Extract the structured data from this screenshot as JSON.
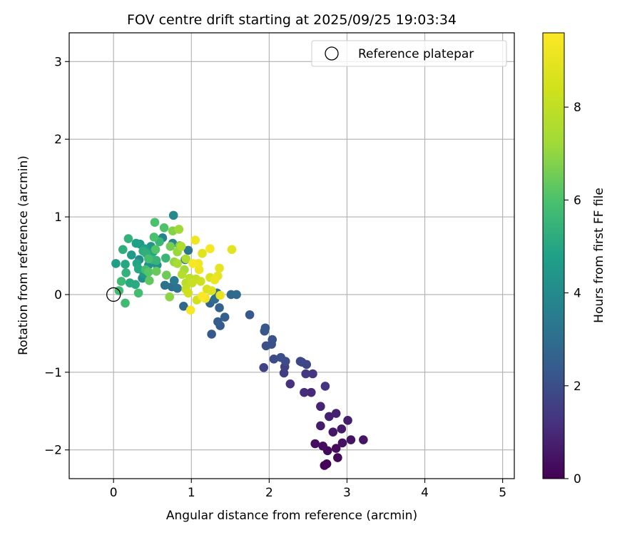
{
  "chart_data": {
    "type": "scatter",
    "title": "FOV centre drift starting at 2025/09/25 19:03:34",
    "xlabel": "Angular distance from reference (arcmin)",
    "ylabel": "Rotation from reference (arcmin)",
    "xlim": [
      -0.57,
      5.15
    ],
    "ylim": [
      -2.37,
      3.37
    ],
    "xticks": [
      0,
      1,
      2,
      3,
      4,
      5
    ],
    "xtick_labels": [
      "0",
      "1",
      "2",
      "3",
      "4",
      "5"
    ],
    "yticks": [
      -2,
      -1,
      0,
      1,
      2,
      3
    ],
    "ytick_labels": [
      "−2",
      "−1",
      "0",
      "1",
      "2",
      "3"
    ],
    "grid": true,
    "legend": {
      "location": "top-right",
      "entries": [
        "Reference platepar"
      ]
    },
    "reference_point": {
      "x": 0,
      "y": 0,
      "label": "Reference platepar"
    },
    "colorbar": {
      "label": "Hours from first FF file",
      "colormap": "viridis",
      "range": [
        0,
        9.6
      ],
      "ticks": [
        0,
        2,
        4,
        6,
        8
      ],
      "tick_labels": [
        "0",
        "2",
        "4",
        "6",
        "8"
      ]
    },
    "points": [
      {
        "x": 2.71,
        "y": -2.2,
        "h": 0.05
      },
      {
        "x": 2.74,
        "y": -2.18,
        "h": 0.1
      },
      {
        "x": 2.88,
        "y": -2.1,
        "h": 0.15
      },
      {
        "x": 2.75,
        "y": -2.01,
        "h": 0.2
      },
      {
        "x": 2.86,
        "y": -1.98,
        "h": 0.25
      },
      {
        "x": 2.69,
        "y": -1.95,
        "h": 0.3
      },
      {
        "x": 2.59,
        "y": -1.92,
        "h": 0.35
      },
      {
        "x": 2.94,
        "y": -1.91,
        "h": 0.4
      },
      {
        "x": 3.05,
        "y": -1.87,
        "h": 0.45
      },
      {
        "x": 3.21,
        "y": -1.87,
        "h": 0.5
      },
      {
        "x": 2.82,
        "y": -1.77,
        "h": 0.55
      },
      {
        "x": 2.93,
        "y": -1.73,
        "h": 0.6
      },
      {
        "x": 2.66,
        "y": -1.69,
        "h": 0.65
      },
      {
        "x": 3.01,
        "y": -1.62,
        "h": 0.7
      },
      {
        "x": 2.77,
        "y": -1.57,
        "h": 0.75
      },
      {
        "x": 2.86,
        "y": -1.53,
        "h": 0.8
      },
      {
        "x": 2.66,
        "y": -1.44,
        "h": 0.9
      },
      {
        "x": 2.54,
        "y": -1.26,
        "h": 1.0
      },
      {
        "x": 2.45,
        "y": -1.26,
        "h": 1.1
      },
      {
        "x": 2.27,
        "y": -1.15,
        "h": 1.2
      },
      {
        "x": 2.72,
        "y": -1.18,
        "h": 1.3
      },
      {
        "x": 2.56,
        "y": -1.02,
        "h": 1.35
      },
      {
        "x": 2.47,
        "y": -1.02,
        "h": 1.4
      },
      {
        "x": 2.19,
        "y": -1.01,
        "h": 1.5
      },
      {
        "x": 2.2,
        "y": -0.93,
        "h": 1.6
      },
      {
        "x": 1.93,
        "y": -0.94,
        "h": 1.7
      },
      {
        "x": 2.48,
        "y": -0.9,
        "h": 1.75
      },
      {
        "x": 2.42,
        "y": -0.87,
        "h": 1.8
      },
      {
        "x": 2.4,
        "y": -0.86,
        "h": 1.85
      },
      {
        "x": 2.21,
        "y": -0.86,
        "h": 1.9
      },
      {
        "x": 2.06,
        "y": -0.83,
        "h": 1.95
      },
      {
        "x": 2.15,
        "y": -0.81,
        "h": 2.0
      },
      {
        "x": 1.96,
        "y": -0.66,
        "h": 2.05
      },
      {
        "x": 2.03,
        "y": -0.64,
        "h": 2.1
      },
      {
        "x": 2.04,
        "y": -0.58,
        "h": 2.15
      },
      {
        "x": 1.94,
        "y": -0.47,
        "h": 2.2
      },
      {
        "x": 1.95,
        "y": -0.43,
        "h": 2.25
      },
      {
        "x": 1.75,
        "y": -0.26,
        "h": 2.3
      },
      {
        "x": 1.26,
        "y": -0.51,
        "h": 2.35
      },
      {
        "x": 1.37,
        "y": -0.4,
        "h": 2.4
      },
      {
        "x": 1.34,
        "y": -0.35,
        "h": 2.45
      },
      {
        "x": 1.43,
        "y": -0.29,
        "h": 2.5
      },
      {
        "x": 1.36,
        "y": -0.17,
        "h": 2.6
      },
      {
        "x": 1.24,
        "y": -0.11,
        "h": 2.7
      },
      {
        "x": 0.9,
        "y": -0.15,
        "h": 2.8
      },
      {
        "x": 1.51,
        "y": 0.0,
        "h": 2.85
      },
      {
        "x": 1.58,
        "y": 0.0,
        "h": 2.9
      },
      {
        "x": 1.3,
        "y": -0.06,
        "h": 3.0
      },
      {
        "x": 1.33,
        "y": 0.02,
        "h": 3.05
      },
      {
        "x": 0.75,
        "y": 0.1,
        "h": 3.1
      },
      {
        "x": 0.82,
        "y": 0.08,
        "h": 3.15
      },
      {
        "x": 0.66,
        "y": 0.12,
        "h": 3.2
      },
      {
        "x": 0.96,
        "y": 0.57,
        "h": 3.3
      },
      {
        "x": 0.92,
        "y": 0.45,
        "h": 3.35
      },
      {
        "x": 0.78,
        "y": 0.18,
        "h": 3.4
      },
      {
        "x": 0.44,
        "y": 0.51,
        "h": 3.6
      },
      {
        "x": 0.63,
        "y": 0.73,
        "h": 3.7
      },
      {
        "x": 0.76,
        "y": 0.66,
        "h": 3.8
      },
      {
        "x": 0.77,
        "y": 1.02,
        "h": 4.0
      },
      {
        "x": 0.33,
        "y": 0.45,
        "h": 4.05
      },
      {
        "x": 0.37,
        "y": 0.21,
        "h": 4.1
      },
      {
        "x": 0.45,
        "y": 0.38,
        "h": 4.2
      },
      {
        "x": 0.56,
        "y": 0.38,
        "h": 4.3
      },
      {
        "x": 0.48,
        "y": 0.62,
        "h": 4.4
      },
      {
        "x": 0.34,
        "y": 0.65,
        "h": 4.5
      },
      {
        "x": 0.39,
        "y": 0.27,
        "h": 4.55
      },
      {
        "x": 0.23,
        "y": 0.51,
        "h": 4.6
      },
      {
        "x": 0.03,
        "y": 0.4,
        "h": 4.7
      },
      {
        "x": 0.29,
        "y": 0.66,
        "h": 4.75
      },
      {
        "x": 0.4,
        "y": 0.59,
        "h": 4.8
      },
      {
        "x": 0.51,
        "y": 0.55,
        "h": 4.9
      },
      {
        "x": 0.3,
        "y": 0.4,
        "h": 4.95
      },
      {
        "x": 0.15,
        "y": 0.39,
        "h": 5.0
      },
      {
        "x": 0.32,
        "y": 0.33,
        "h": 5.05
      },
      {
        "x": 0.21,
        "y": 0.15,
        "h": 5.1
      },
      {
        "x": 0.28,
        "y": 0.13,
        "h": 5.15
      },
      {
        "x": 0.38,
        "y": 0.56,
        "h": 5.2
      },
      {
        "x": 0.12,
        "y": 0.58,
        "h": 5.25
      },
      {
        "x": 0.42,
        "y": 0.53,
        "h": 5.3
      },
      {
        "x": 0.16,
        "y": 0.28,
        "h": 5.35
      },
      {
        "x": 0.19,
        "y": 0.72,
        "h": 5.4
      },
      {
        "x": 0.5,
        "y": 0.45,
        "h": 5.45
      },
      {
        "x": 0.55,
        "y": 0.44,
        "h": 5.5
      },
      {
        "x": 0.67,
        "y": 0.47,
        "h": 5.55
      },
      {
        "x": 0.59,
        "y": 0.68,
        "h": 5.6
      },
      {
        "x": 0.1,
        "y": 0.17,
        "h": 5.65
      },
      {
        "x": 0.07,
        "y": 0.05,
        "h": 5.7
      },
      {
        "x": 0.15,
        "y": -0.11,
        "h": 5.75
      },
      {
        "x": 0.32,
        "y": 0.02,
        "h": 5.8
      },
      {
        "x": 0.41,
        "y": 0.32,
        "h": 5.85
      },
      {
        "x": 0.45,
        "y": 0.46,
        "h": 5.9
      },
      {
        "x": 0.52,
        "y": 0.74,
        "h": 5.95
      },
      {
        "x": 0.53,
        "y": 0.93,
        "h": 6.0
      },
      {
        "x": 0.65,
        "y": 0.86,
        "h": 6.05
      },
      {
        "x": 0.54,
        "y": 0.58,
        "h": 6.1
      },
      {
        "x": 0.45,
        "y": 0.29,
        "h": 6.2
      },
      {
        "x": 0.46,
        "y": 0.18,
        "h": 6.3
      },
      {
        "x": 0.55,
        "y": 0.3,
        "h": 6.4
      },
      {
        "x": 0.68,
        "y": 0.25,
        "h": 6.5
      },
      {
        "x": 0.73,
        "y": 0.62,
        "h": 6.6
      },
      {
        "x": 0.85,
        "y": 0.63,
        "h": 6.7
      },
      {
        "x": 0.76,
        "y": 0.82,
        "h": 6.8
      },
      {
        "x": 0.72,
        "y": -0.03,
        "h": 6.9
      },
      {
        "x": 0.78,
        "y": 0.42,
        "h": 7.0
      },
      {
        "x": 0.82,
        "y": 0.55,
        "h": 7.1
      },
      {
        "x": 0.84,
        "y": 0.84,
        "h": 7.2
      },
      {
        "x": 0.91,
        "y": 0.32,
        "h": 7.3
      },
      {
        "x": 0.82,
        "y": 0.4,
        "h": 7.4
      },
      {
        "x": 0.93,
        "y": 0.46,
        "h": 7.5
      },
      {
        "x": 0.87,
        "y": 0.62,
        "h": 7.6
      },
      {
        "x": 0.88,
        "y": 0.26,
        "h": 7.7
      },
      {
        "x": 0.93,
        "y": 0.15,
        "h": 7.8
      },
      {
        "x": 0.98,
        "y": 0.21,
        "h": 7.9
      },
      {
        "x": 1.06,
        "y": 0.2,
        "h": 8.0
      },
      {
        "x": 0.93,
        "y": 0.07,
        "h": 8.1
      },
      {
        "x": 1.01,
        "y": 0.15,
        "h": 8.2
      },
      {
        "x": 1.12,
        "y": 0.17,
        "h": 8.3
      },
      {
        "x": 0.96,
        "y": 0.02,
        "h": 8.4
      },
      {
        "x": 1.07,
        "y": -0.07,
        "h": 8.5
      },
      {
        "x": 1.2,
        "y": 0.07,
        "h": 8.6
      },
      {
        "x": 1.24,
        "y": 0.22,
        "h": 8.7
      },
      {
        "x": 1.26,
        "y": 0.05,
        "h": 8.8
      },
      {
        "x": 1.14,
        "y": 0.53,
        "h": 8.85
      },
      {
        "x": 1.52,
        "y": 0.58,
        "h": 8.9
      },
      {
        "x": 1.36,
        "y": 0.34,
        "h": 9.0
      },
      {
        "x": 1.34,
        "y": 0.24,
        "h": 9.05
      },
      {
        "x": 1.37,
        "y": -0.01,
        "h": 9.1
      },
      {
        "x": 1.3,
        "y": 0.19,
        "h": 9.15
      },
      {
        "x": 1.1,
        "y": 0.32,
        "h": 9.2
      },
      {
        "x": 1.05,
        "y": 0.7,
        "h": 9.25
      },
      {
        "x": 1.09,
        "y": 0.4,
        "h": 9.3
      },
      {
        "x": 1.18,
        "y": -0.05,
        "h": 9.35
      },
      {
        "x": 1.24,
        "y": 0.59,
        "h": 9.4
      },
      {
        "x": 1.02,
        "y": 0.4,
        "h": 9.45
      },
      {
        "x": 0.99,
        "y": -0.2,
        "h": 9.5
      },
      {
        "x": 1.14,
        "y": -0.02,
        "h": 9.55
      }
    ]
  }
}
